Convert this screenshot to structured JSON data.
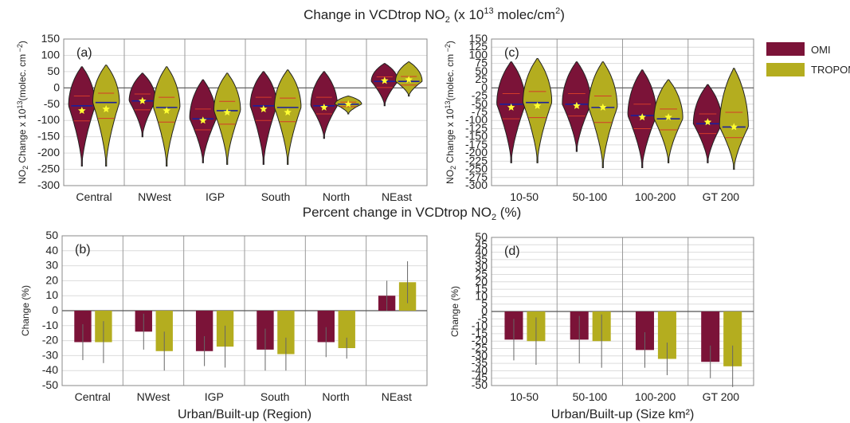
{
  "figure": {
    "title_top": "Change in VCDtrop NO",
    "title_top_sub": "2",
    "title_top_tail": " (x 10",
    "title_top_sup": "13",
    "title_top_end": " molec/cm",
    "title_top_sup2": "2",
    "title_top_close": ")",
    "title_mid": "Percent change in VCDtrop NO",
    "title_mid_sub": "2",
    "title_mid_end": " (%)"
  },
  "legend": {
    "items": [
      {
        "label": "OMI",
        "color": "#7b1338"
      },
      {
        "label": "TROPOMI",
        "color": "#b4ad1f"
      }
    ]
  },
  "colors": {
    "omi": "#7b1338",
    "tropomi": "#b4ad1f",
    "median": "#1a1f9c",
    "quartile": "#d33a2a",
    "star": "#ffff33"
  },
  "chart_data": [
    {
      "id": "a",
      "panel_label": "(a)",
      "type": "violin",
      "ylabel": "NO2 Change x 10^13(molec. cm^-2)",
      "ylim": [
        -300,
        150
      ],
      "yticks": [
        150,
        100,
        50,
        0,
        -50,
        -100,
        -150,
        -200,
        -250,
        -300
      ],
      "categories": [
        "Central",
        "NWest",
        "IGP",
        "South",
        "North",
        "NEast"
      ],
      "series": [
        {
          "name": "OMI",
          "median": [
            -55,
            -40,
            -95,
            -55,
            -55,
            20
          ],
          "mean": [
            -70,
            -40,
            -100,
            -65,
            -60,
            22
          ],
          "min": [
            -240,
            -150,
            -230,
            -235,
            -155,
            -55
          ],
          "max": [
            65,
            45,
            25,
            50,
            50,
            75
          ]
        },
        {
          "name": "TROPOMI",
          "median": [
            -45,
            -60,
            -70,
            -60,
            -50,
            20
          ],
          "mean": [
            -65,
            -70,
            -75,
            -75,
            -50,
            25
          ],
          "min": [
            -240,
            -240,
            -235,
            -235,
            -80,
            -25
          ],
          "max": [
            70,
            65,
            45,
            55,
            -25,
            80
          ]
        }
      ]
    },
    {
      "id": "c",
      "panel_label": "(c)",
      "type": "violin",
      "ylabel": "NO2 Change x 10^13(molec. cm^-2)",
      "ylim": [
        -300,
        150
      ],
      "yticks": [
        150,
        125,
        100,
        75,
        50,
        25,
        0,
        -25,
        -50,
        -75,
        -100,
        -125,
        -150,
        -175,
        -200,
        -225,
        -250,
        -275,
        -300
      ],
      "categories": [
        "10-50",
        "50-100",
        "100-200",
        "GT 200"
      ],
      "series": [
        {
          "name": "OMI",
          "median": [
            -50,
            -50,
            -85,
            -110
          ],
          "mean": [
            -60,
            -55,
            -90,
            -105
          ],
          "min": [
            -230,
            -195,
            -245,
            -230
          ],
          "max": [
            80,
            80,
            55,
            10
          ]
        },
        {
          "name": "TROPOMI",
          "median": [
            -45,
            -60,
            -95,
            -120
          ],
          "mean": [
            -55,
            -60,
            -90,
            -120
          ],
          "min": [
            -230,
            -245,
            -230,
            -250
          ],
          "max": [
            90,
            80,
            25,
            60
          ]
        }
      ]
    },
    {
      "id": "b",
      "panel_label": "(b)",
      "type": "bar",
      "xlabel": "Urban/Built-up (Region)",
      "ylabel": "Change (%)",
      "ylim": [
        -50,
        50
      ],
      "yticks": [
        50,
        40,
        30,
        20,
        10,
        0,
        -10,
        -20,
        -30,
        -40,
        -50
      ],
      "categories": [
        "Central",
        "NWest",
        "IGP",
        "South",
        "North",
        "NEast"
      ],
      "series": [
        {
          "name": "OMI",
          "values": [
            -21,
            -14,
            -27,
            -26,
            -21,
            10
          ],
          "err": [
            12,
            12,
            10,
            14,
            10,
            10
          ]
        },
        {
          "name": "TROPOMI",
          "values": [
            -21,
            -27,
            -24,
            -29,
            -25,
            19
          ],
          "err": [
            14,
            13,
            14,
            11,
            7,
            14
          ]
        }
      ]
    },
    {
      "id": "d",
      "panel_label": "(d)",
      "type": "bar",
      "xlabel": "Urban/Built-up (Size km²)",
      "ylabel": "Change (%)",
      "ylim": [
        -50,
        50
      ],
      "yticks": [
        50,
        45,
        40,
        35,
        30,
        25,
        20,
        15,
        10,
        5,
        0,
        -5,
        -10,
        -15,
        -20,
        -25,
        -30,
        -35,
        -40,
        -45,
        -50
      ],
      "categories": [
        "10-50",
        "50-100",
        "100-200",
        "GT 200"
      ],
      "series": [
        {
          "name": "OMI",
          "values": [
            -19,
            -19,
            -26,
            -34
          ],
          "err": [
            14,
            16,
            12,
            11
          ]
        },
        {
          "name": "TROPOMI",
          "values": [
            -20,
            -20,
            -32,
            -37
          ],
          "err": [
            16,
            18,
            11,
            14
          ]
        }
      ]
    }
  ]
}
